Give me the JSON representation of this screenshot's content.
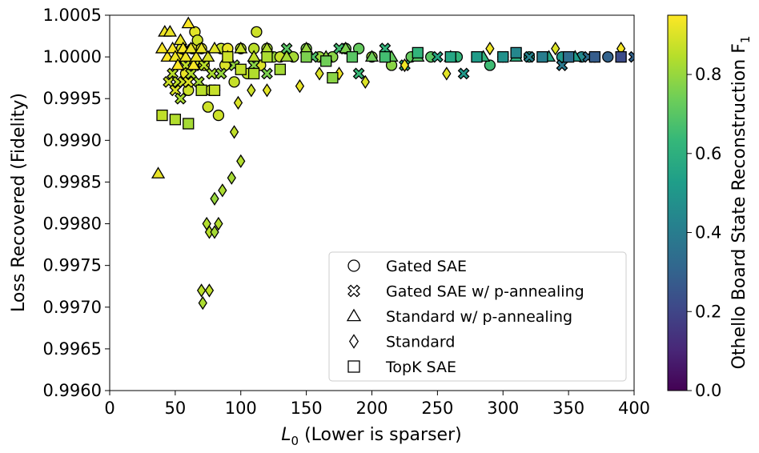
{
  "chart_data": {
    "type": "scatter",
    "title": "",
    "xlabel_var": "L",
    "xlabel_sub": "0",
    "xlabel_rest": " (Lower is sparser)",
    "ylabel": "Loss Recovered (Fidelity)",
    "xlim": [
      0,
      400
    ],
    "ylim": [
      0.996,
      1.0005
    ],
    "x_ticks": [
      "0",
      "50",
      "100",
      "150",
      "200",
      "250",
      "300",
      "350",
      "400"
    ],
    "y_ticks": [
      "0.9960",
      "0.9965",
      "0.9970",
      "0.9975",
      "0.9980",
      "0.9985",
      "0.9990",
      "0.9995",
      "1.0000",
      "1.0005"
    ],
    "colorbar": {
      "label_main": "Othello Board State Reconstruction F",
      "label_sub": "1",
      "range": [
        0.0,
        0.95
      ],
      "ticks": [
        "0.0",
        "0.2",
        "0.4",
        "0.6",
        "0.8"
      ],
      "colormap": "viridis"
    },
    "legend_position": "lower-right",
    "series": [
      {
        "name": "Gated SAE",
        "marker": "circle",
        "points": [
          [
            52,
            1.0,
            0.93
          ],
          [
            55,
            1.0001,
            0.9
          ],
          [
            58,
            0.9998,
            0.92
          ],
          [
            60,
            0.9996,
            0.88
          ],
          [
            63,
            1.0001,
            0.9
          ],
          [
            65,
            1.0003,
            0.91
          ],
          [
            67,
            1.0002,
            0.88
          ],
          [
            70,
            1.0001,
            0.9
          ],
          [
            72,
            0.9999,
            0.92
          ],
          [
            75,
            0.9994,
            0.88
          ],
          [
            77,
            0.9996,
            0.86
          ],
          [
            80,
            0.9996,
            0.9
          ],
          [
            83,
            0.9993,
            0.88
          ],
          [
            85,
            1.0001,
            0.87
          ],
          [
            88,
            0.9999,
            0.9
          ],
          [
            90,
            1.0001,
            0.92
          ],
          [
            95,
            0.9997,
            0.87
          ],
          [
            100,
            1.0001,
            0.84
          ],
          [
            105,
            0.9998,
            0.86
          ],
          [
            110,
            1.0001,
            0.85
          ],
          [
            112,
            1.0003,
            0.88
          ],
          [
            115,
            0.9999,
            0.9
          ],
          [
            120,
            1.0001,
            0.82
          ],
          [
            125,
            1.0,
            0.8
          ],
          [
            130,
            1.0,
            0.87
          ],
          [
            140,
            1.0,
            0.82
          ],
          [
            150,
            1.0001,
            0.76
          ],
          [
            160,
            1.0,
            0.8
          ],
          [
            170,
            1.0,
            0.78
          ],
          [
            180,
            1.0001,
            0.74
          ],
          [
            190,
            1.0001,
            0.72
          ],
          [
            200,
            1.0,
            0.8
          ],
          [
            215,
            0.9999,
            0.78
          ],
          [
            230,
            1.0,
            0.72
          ],
          [
            245,
            1.0,
            0.7
          ],
          [
            265,
            1.0,
            0.62
          ],
          [
            290,
            0.9999,
            0.65
          ],
          [
            300,
            1.0,
            0.58
          ],
          [
            320,
            1.0,
            0.55
          ],
          [
            345,
            1.0,
            0.5
          ],
          [
            360,
            1.0,
            0.45
          ],
          [
            370,
            1.0,
            0.35
          ],
          [
            380,
            1.0,
            0.3
          ]
        ]
      },
      {
        "name": "Gated SAE w/ p-annealing",
        "marker": "x",
        "points": [
          [
            45,
            0.9997,
            0.88
          ],
          [
            48,
            0.9998,
            0.85
          ],
          [
            50,
            0.9996,
            0.9
          ],
          [
            52,
            0.9997,
            0.86
          ],
          [
            54,
            0.9995,
            0.83
          ],
          [
            56,
            0.9997,
            0.88
          ],
          [
            58,
            0.9999,
            0.86
          ],
          [
            60,
            0.9997,
            0.9
          ],
          [
            62,
            0.9998,
            0.84
          ],
          [
            65,
            0.9999,
            0.87
          ],
          [
            68,
            0.9997,
            0.82
          ],
          [
            72,
            0.9999,
            0.85
          ],
          [
            78,
            0.9998,
            0.83
          ],
          [
            85,
            0.9998,
            0.8
          ],
          [
            95,
            0.9999,
            0.8
          ],
          [
            110,
            0.9999,
            0.78
          ],
          [
            120,
            0.9998,
            0.76
          ],
          [
            135,
            1.0001,
            0.7
          ],
          [
            155,
            1.0,
            0.68
          ],
          [
            175,
            1.0001,
            0.66
          ],
          [
            190,
            0.9998,
            0.64
          ],
          [
            210,
            1.0001,
            0.62
          ],
          [
            225,
            0.9999,
            0.6
          ],
          [
            250,
            1.0,
            0.56
          ],
          [
            270,
            0.9998,
            0.5
          ],
          [
            300,
            1.0,
            0.46
          ],
          [
            320,
            1.0,
            0.42
          ],
          [
            345,
            0.9999,
            0.38
          ],
          [
            365,
            1.0,
            0.34
          ],
          [
            400,
            1.0,
            0.3
          ]
        ]
      },
      {
        "name": "Standard w/ p-annealing",
        "marker": "triangle",
        "points": [
          [
            37,
            0.9986,
            0.92
          ],
          [
            40,
            1.0001,
            0.94
          ],
          [
            42,
            1.0003,
            0.93
          ],
          [
            44,
            1.0,
            0.95
          ],
          [
            46,
            1.0003,
            0.92
          ],
          [
            48,
            1.0001,
            0.94
          ],
          [
            50,
            1.0,
            0.93
          ],
          [
            52,
            0.9999,
            0.95
          ],
          [
            54,
            1.0002,
            0.92
          ],
          [
            56,
            1.0001,
            0.94
          ],
          [
            58,
            1.0,
            0.93
          ],
          [
            60,
            1.0004,
            0.95
          ],
          [
            62,
            1.0001,
            0.92
          ],
          [
            64,
            0.9999,
            0.94
          ],
          [
            66,
            1.0,
            0.93
          ],
          [
            70,
            1.0001,
            0.92
          ],
          [
            75,
            1.0,
            0.9
          ],
          [
            80,
            1.0001,
            0.91
          ],
          [
            90,
            1.0,
            0.88
          ],
          [
            100,
            1.0001,
            0.87
          ],
          [
            110,
            1.0,
            0.86
          ],
          [
            120,
            1.0001,
            0.84
          ],
          [
            135,
            1.0,
            0.82
          ],
          [
            150,
            1.0001,
            0.8
          ],
          [
            165,
            1.0,
            0.79
          ],
          [
            180,
            1.0001,
            0.76
          ],
          [
            200,
            1.0,
            0.74
          ],
          [
            215,
            1.0,
            0.72
          ],
          [
            235,
            1.0,
            0.7
          ],
          [
            260,
            1.0,
            0.66
          ],
          [
            285,
            1.0,
            0.62
          ],
          [
            310,
            1.0,
            0.6
          ],
          [
            335,
            1.0,
            0.56
          ],
          [
            355,
            1.0,
            0.52
          ]
        ]
      },
      {
        "name": "Standard",
        "marker": "diamond",
        "points": [
          [
            70,
            0.9972,
            0.85
          ],
          [
            71,
            0.99705,
            0.83
          ],
          [
            76,
            0.9972,
            0.86
          ],
          [
            74,
            0.998,
            0.84
          ],
          [
            76,
            0.9979,
            0.85
          ],
          [
            80,
            0.9979,
            0.82
          ],
          [
            83,
            0.998,
            0.84
          ],
          [
            80,
            0.9983,
            0.8
          ],
          [
            86,
            0.9984,
            0.83
          ],
          [
            93,
            0.99855,
            0.82
          ],
          [
            100,
            0.99875,
            0.84
          ],
          [
            95,
            0.9991,
            0.86
          ],
          [
            98,
            0.99945,
            0.9
          ],
          [
            108,
            0.9996,
            0.88
          ],
          [
            120,
            0.9996,
            0.91
          ],
          [
            145,
            0.99965,
            0.92
          ],
          [
            160,
            0.9998,
            0.9
          ],
          [
            175,
            0.9998,
            0.93
          ],
          [
            195,
            0.9997,
            0.9
          ],
          [
            225,
            0.9999,
            0.93
          ],
          [
            257,
            0.9998,
            0.91
          ],
          [
            290,
            1.0001,
            0.93
          ],
          [
            340,
            1.0001,
            0.9
          ],
          [
            390,
            1.0001,
            0.94
          ]
        ]
      },
      {
        "name": "TopK SAE",
        "marker": "square",
        "points": [
          [
            40,
            0.9993,
            0.86
          ],
          [
            50,
            0.99925,
            0.84
          ],
          [
            60,
            0.9992,
            0.82
          ],
          [
            70,
            0.9996,
            0.85
          ],
          [
            80,
            0.9996,
            0.87
          ],
          [
            90,
            1.0,
            0.88
          ],
          [
            100,
            0.99985,
            0.86
          ],
          [
            110,
            0.9998,
            0.84
          ],
          [
            120,
            1.0,
            0.83
          ],
          [
            130,
            0.99985,
            0.82
          ],
          [
            150,
            1.0,
            0.76
          ],
          [
            165,
            0.99995,
            0.74
          ],
          [
            170,
            0.99975,
            0.78
          ],
          [
            185,
            1.0,
            0.7
          ],
          [
            210,
            1.0,
            0.66
          ],
          [
            235,
            1.00005,
            0.62
          ],
          [
            260,
            1.0,
            0.56
          ],
          [
            280,
            1.0,
            0.52
          ],
          [
            300,
            1.0,
            0.48
          ],
          [
            310,
            1.00005,
            0.44
          ],
          [
            330,
            1.0,
            0.4
          ],
          [
            350,
            1.0,
            0.34
          ],
          [
            370,
            1.0,
            0.28
          ],
          [
            390,
            1.0,
            0.22
          ]
        ]
      }
    ]
  }
}
